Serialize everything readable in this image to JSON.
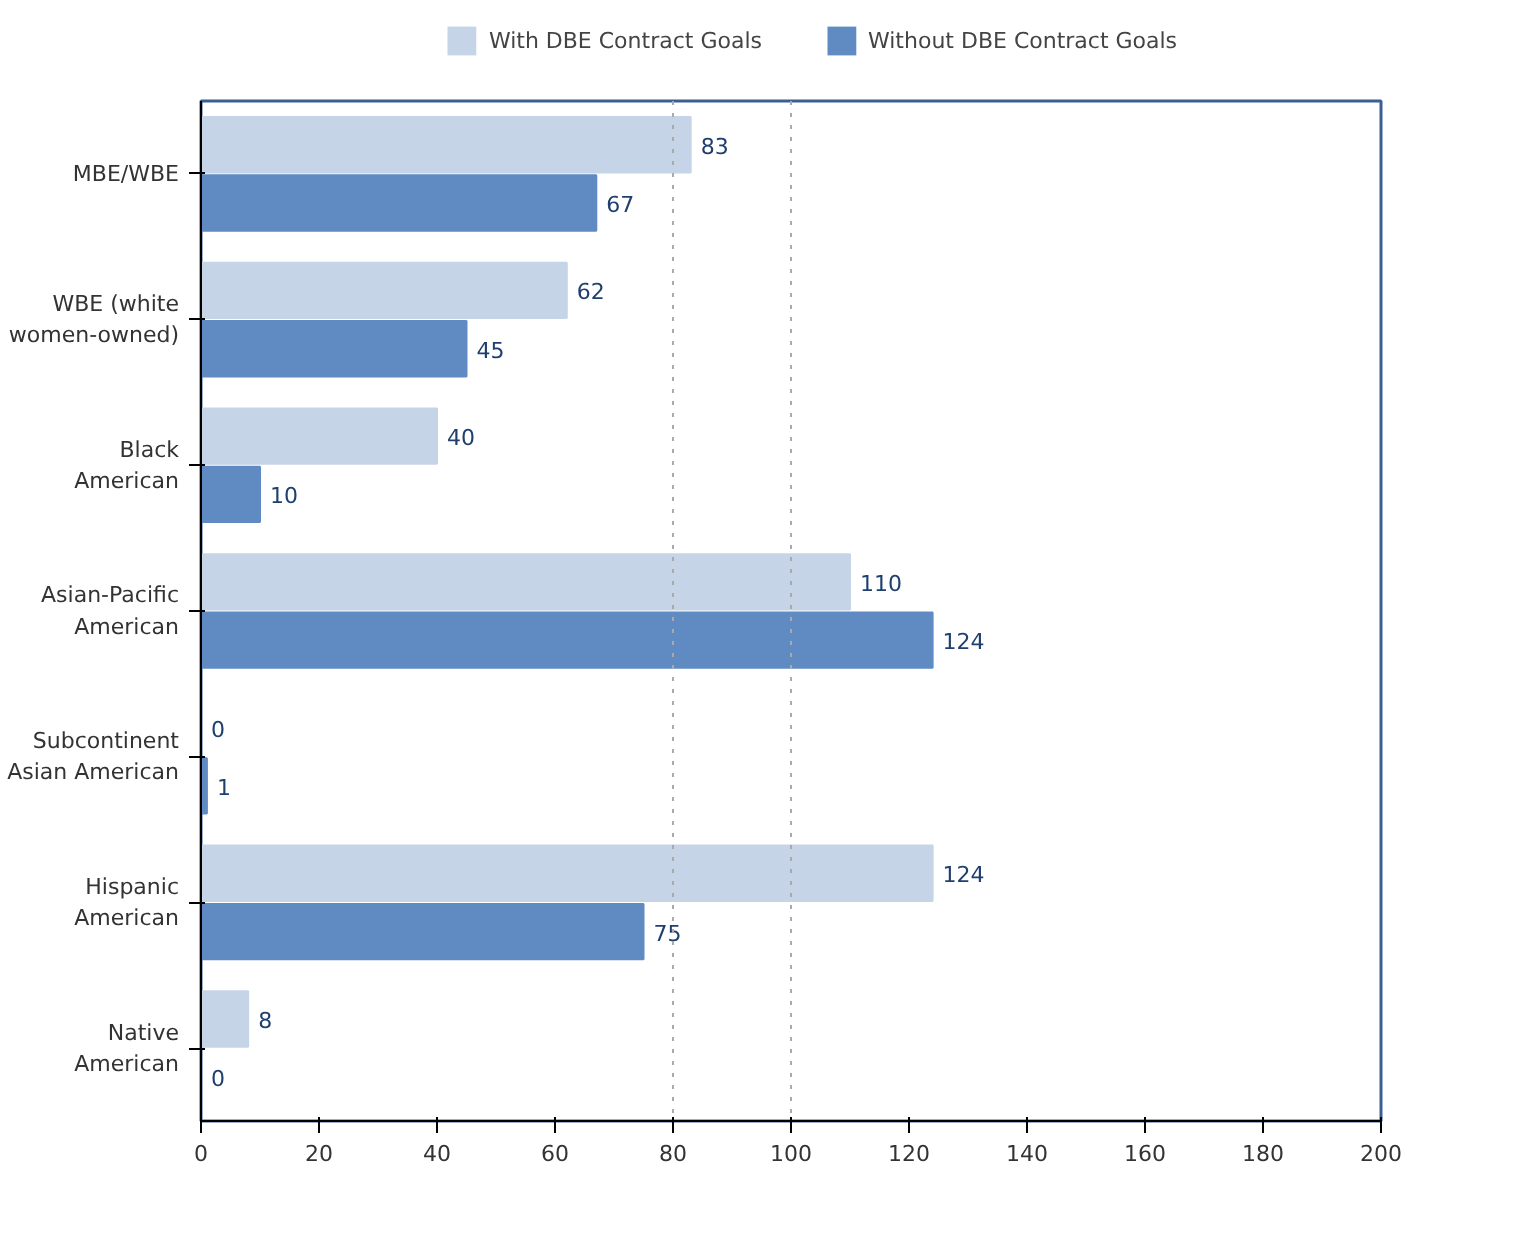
{
  "chart_data": {
    "type": "bar",
    "orientation": "horizontal",
    "categories": [
      "MBE/WBE",
      "WBE (white\nwomen-owned)",
      "Black\nAmerican",
      "Asian-Pacific\nAmerican",
      "Subcontinent\nAsian American",
      "Hispanic\nAmerican",
      "Native\nAmerican"
    ],
    "series": [
      {
        "name": "With DBE Contract Goals",
        "color": "#c6d4e8",
        "values": [
          83,
          62,
          40,
          110,
          0,
          124,
          8
        ]
      },
      {
        "name": "Without DBE Contract Goals",
        "color": "#5f8bc2",
        "values": [
          67,
          45,
          10,
          124,
          1,
          75,
          0
        ]
      }
    ],
    "xlim": [
      0,
      200
    ],
    "xticks": [
      0,
      20,
      40,
      60,
      80,
      100,
      120,
      140,
      160,
      180,
      200
    ],
    "ref_lines": [
      {
        "axis": "x",
        "value": 80,
        "color": "#aaaaaa",
        "line_style": "dotted"
      },
      {
        "axis": "x",
        "value": 100,
        "color": "#aaaaaa",
        "line_style": "dotted"
      }
    ],
    "data_labels": true,
    "grid": false,
    "legend": "top"
  }
}
